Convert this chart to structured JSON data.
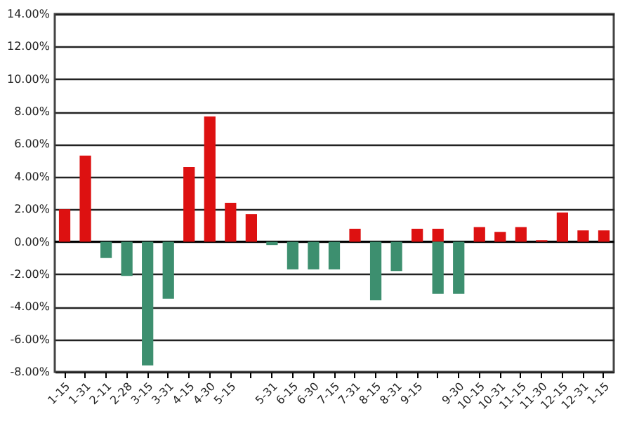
{
  "chart_data": {
    "type": "bar",
    "categories": [
      "1-15",
      "1-31",
      "2-11",
      "2-28",
      "3-15",
      "3-31",
      "4-15",
      "4-30",
      "5-15",
      null,
      "5-31",
      "6-15",
      "6-30",
      "7-15",
      "7-31",
      "8-15",
      "8-31",
      "9-15",
      null,
      "9-30",
      "10-15",
      "10-31",
      "11-15",
      "11-30",
      "12-15",
      "12-31",
      "1-15"
    ],
    "series": [
      {
        "color": "#dd1111",
        "values": [
          2.0,
          5.3,
          null,
          null,
          null,
          null,
          4.6,
          7.7,
          2.4,
          1.7,
          null,
          null,
          null,
          null,
          0.8,
          null,
          null,
          0.8,
          0.8,
          null,
          0.9,
          0.6,
          0.9,
          0.1,
          1.8,
          0.7,
          0.7
        ]
      },
      {
        "color": "#3d8f6f",
        "values": [
          null,
          null,
          -1.0,
          -2.1,
          -7.6,
          -3.5,
          null,
          null,
          null,
          null,
          -0.2,
          -1.7,
          -1.7,
          -1.7,
          null,
          -3.6,
          -1.8,
          null,
          -3.2,
          -3.2,
          null,
          null,
          null,
          null,
          null,
          null,
          null
        ]
      }
    ],
    "ylim": [
      -8,
      14
    ],
    "yticks": [
      {
        "value": -8,
        "label": "-8.00%"
      },
      {
        "value": -6,
        "label": "-6.00%"
      },
      {
        "value": -4,
        "label": "-4.00%"
      },
      {
        "value": -2,
        "label": "-2.00%"
      },
      {
        "value": 0,
        "label": "0.00%"
      },
      {
        "value": 2,
        "label": "2.00%"
      },
      {
        "value": 4,
        "label": "4.00%"
      },
      {
        "value": 6,
        "label": "6.00%"
      },
      {
        "value": 8,
        "label": "8.00%"
      },
      {
        "value": 10,
        "label": "10.00%"
      },
      {
        "value": 12,
        "label": "12.00%"
      },
      {
        "value": 14,
        "label": "14.00%"
      }
    ],
    "grid": "y"
  }
}
